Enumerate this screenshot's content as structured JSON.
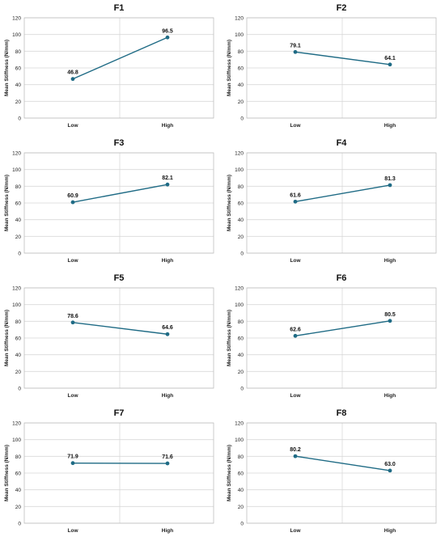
{
  "chart_data": [
    {
      "type": "line",
      "title": "F1",
      "ylabel": "Mean Stiffness (N/mm)",
      "categories": [
        "Low",
        "High"
      ],
      "values": [
        46.8,
        96.5
      ],
      "data_labels": [
        "46.8",
        "96.5"
      ],
      "ylim": [
        0,
        120
      ],
      "yticks": [
        0,
        20,
        40,
        60,
        80,
        100,
        120
      ],
      "grid": true,
      "color": "#1f6b85"
    },
    {
      "type": "line",
      "title": "F2",
      "ylabel": "Mean Stiffness (N/mm)",
      "categories": [
        "Low",
        "High"
      ],
      "values": [
        79.1,
        64.1
      ],
      "data_labels": [
        "79.1",
        "64.1"
      ],
      "ylim": [
        0,
        120
      ],
      "yticks": [
        0,
        20,
        40,
        60,
        80,
        100,
        120
      ],
      "grid": true,
      "color": "#1f6b85"
    },
    {
      "type": "line",
      "title": "F3",
      "ylabel": "Mean Stiffness (N/mm)",
      "categories": [
        "Low",
        "High"
      ],
      "values": [
        60.9,
        82.1
      ],
      "data_labels": [
        "60.9",
        "82.1"
      ],
      "ylim": [
        0,
        120
      ],
      "yticks": [
        0,
        20,
        40,
        60,
        80,
        100,
        120
      ],
      "grid": true,
      "color": "#1f6b85"
    },
    {
      "type": "line",
      "title": "F4",
      "ylabel": "Mean Stiffness (N/mm)",
      "categories": [
        "Low",
        "High"
      ],
      "values": [
        61.6,
        81.3
      ],
      "data_labels": [
        "61.6",
        "81.3"
      ],
      "ylim": [
        0,
        120
      ],
      "yticks": [
        0,
        20,
        40,
        60,
        80,
        100,
        120
      ],
      "grid": true,
      "color": "#1f6b85"
    },
    {
      "type": "line",
      "title": "F5",
      "ylabel": "Mean Stiffness (N/mm)",
      "categories": [
        "Low",
        "High"
      ],
      "values": [
        78.6,
        64.6
      ],
      "data_labels": [
        "78.6",
        "64.6"
      ],
      "ylim": [
        0,
        120
      ],
      "yticks": [
        0,
        20,
        40,
        60,
        80,
        100,
        120
      ],
      "grid": true,
      "color": "#1f6b85"
    },
    {
      "type": "line",
      "title": "F6",
      "ylabel": "Mean Stiffness (N/mm)",
      "categories": [
        "Low",
        "High"
      ],
      "values": [
        62.6,
        80.5
      ],
      "data_labels": [
        "62.6",
        "80.5"
      ],
      "ylim": [
        0,
        120
      ],
      "yticks": [
        0,
        20,
        40,
        60,
        80,
        100,
        120
      ],
      "grid": true,
      "color": "#1f6b85"
    },
    {
      "type": "line",
      "title": "F7",
      "ylabel": "Mean Stiffness (N/mm)",
      "categories": [
        "Low",
        "High"
      ],
      "values": [
        71.9,
        71.6
      ],
      "data_labels": [
        "71.9",
        "71.6"
      ],
      "ylim": [
        0,
        120
      ],
      "yticks": [
        0,
        20,
        40,
        60,
        80,
        100,
        120
      ],
      "grid": true,
      "color": "#1f6b85"
    },
    {
      "type": "line",
      "title": "F8",
      "ylabel": "Mean Stiffness (N/mm)",
      "categories": [
        "Low",
        "High"
      ],
      "values": [
        80.2,
        63.0
      ],
      "data_labels": [
        "80.2",
        "63.0"
      ],
      "ylim": [
        0,
        120
      ],
      "yticks": [
        0,
        20,
        40,
        60,
        80,
        100,
        120
      ],
      "grid": true,
      "color": "#1f6b85"
    }
  ]
}
